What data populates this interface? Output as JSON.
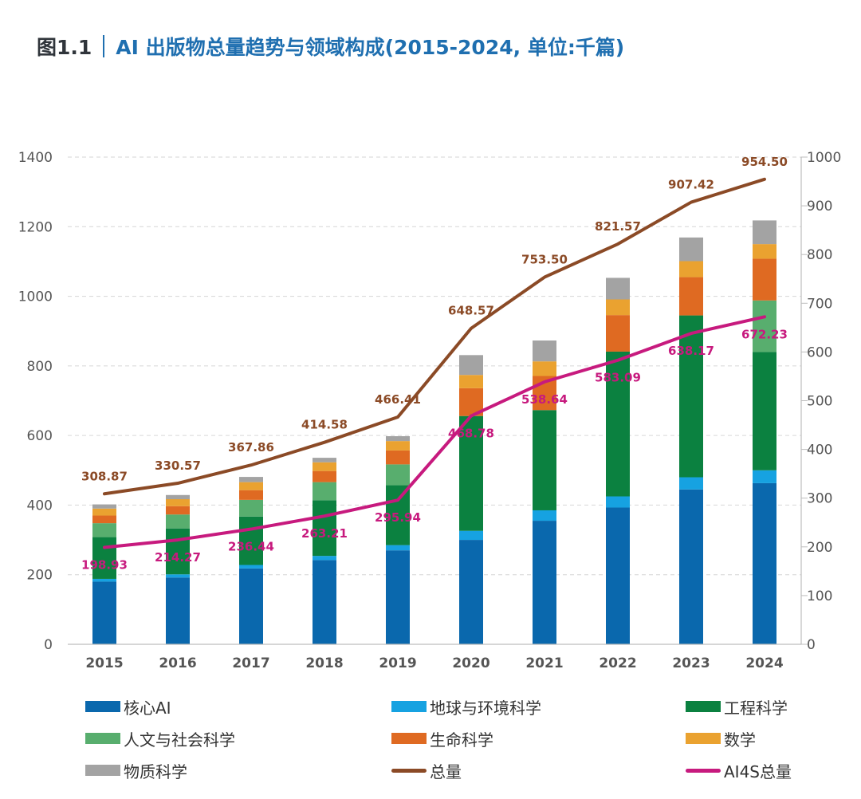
{
  "title": {
    "figure_number": "图1.1",
    "text": "AI 出版物总量趋势与领域构成(2015-2024, 单位:千篇)"
  },
  "colors": {
    "core_ai": "#0a68ad",
    "earth_env": "#16a2e1",
    "engineering": "#0b8140",
    "humanities_social": "#58ae6e",
    "life_sciences": "#df6a22",
    "mathematics": "#eaa230",
    "physical": "#a3a3a3",
    "total": "#8b4a26",
    "ai4s_total": "#c71a7e",
    "title_accent": "#1f6fb0"
  },
  "chart_data": {
    "type": "bar",
    "stacked": true,
    "categories": [
      "2015",
      "2016",
      "2017",
      "2018",
      "2019",
      "2020",
      "2021",
      "2022",
      "2023",
      "2024"
    ],
    "y_left": {
      "min": 0,
      "max": 1400,
      "ticks": [
        "0",
        "200",
        "400",
        "600",
        "800",
        "1000",
        "1200",
        "1400"
      ]
    },
    "y_right": {
      "min": 0,
      "max": 1000,
      "ticks": [
        "0",
        "100",
        "200",
        "300",
        "400",
        "500",
        "600",
        "700",
        "800",
        "900",
        "1000"
      ]
    },
    "grid": "horizontal dashed",
    "legend_position": "bottom",
    "series": [
      {
        "name": "核心AI",
        "key": "core_ai",
        "axis": "left",
        "values": [
          180,
          192,
          218,
          242,
          270,
          300,
          355,
          393,
          445,
          463
        ]
      },
      {
        "name": "地球与环境科学",
        "key": "earth_env",
        "axis": "left",
        "values": [
          8,
          9,
          10,
          12,
          15,
          26,
          30,
          32,
          35,
          37
        ]
      },
      {
        "name": "工程科学",
        "key": "engineering",
        "axis": "left",
        "values": [
          120,
          132,
          139,
          160,
          172,
          330,
          288,
          416,
          465,
          340
        ]
      },
      {
        "name": "人文与社会科学",
        "key": "humanities_social",
        "axis": "left",
        "values": [
          40,
          40,
          48,
          52,
          60,
          0,
          0,
          0,
          0,
          148
        ]
      },
      {
        "name": "生命科学",
        "key": "life_sciences",
        "axis": "left",
        "values": [
          22,
          24,
          28,
          32,
          40,
          80,
          98,
          105,
          110,
          120
        ]
      },
      {
        "name": "数学",
        "key": "mathematics",
        "axis": "left",
        "values": [
          20,
          20,
          23,
          25,
          27,
          38,
          42,
          45,
          46,
          42
        ]
      },
      {
        "name": "物质科学",
        "key": "physical",
        "axis": "left",
        "values": [
          12,
          12,
          15,
          13,
          14,
          57,
          60,
          62,
          68,
          68
        ]
      },
      {
        "name": "总量",
        "key": "total",
        "type": "line",
        "axis": "right",
        "values": [
          308.87,
          330.57,
          367.86,
          414.58,
          466.41,
          648.57,
          753.5,
          821.57,
          907.42,
          954.5
        ]
      },
      {
        "name": "AI4S总量",
        "key": "ai4s_total",
        "type": "line",
        "axis": "right",
        "values": [
          198.93,
          214.27,
          236.44,
          263.21,
          295.94,
          468.78,
          538.64,
          583.09,
          638.17,
          672.23
        ]
      }
    ],
    "data_labels": {
      "total": [
        "308.87",
        "330.57",
        "367.86",
        "414.58",
        "466.41",
        "648.57",
        "753.50",
        "821.57",
        "907.42",
        "954.50"
      ],
      "ai4s_total": [
        "198.93",
        "214.27",
        "236.44",
        "263.21",
        "295.94",
        "468.78",
        "538.64",
        "583.09",
        "638.17",
        "672.23"
      ]
    }
  }
}
